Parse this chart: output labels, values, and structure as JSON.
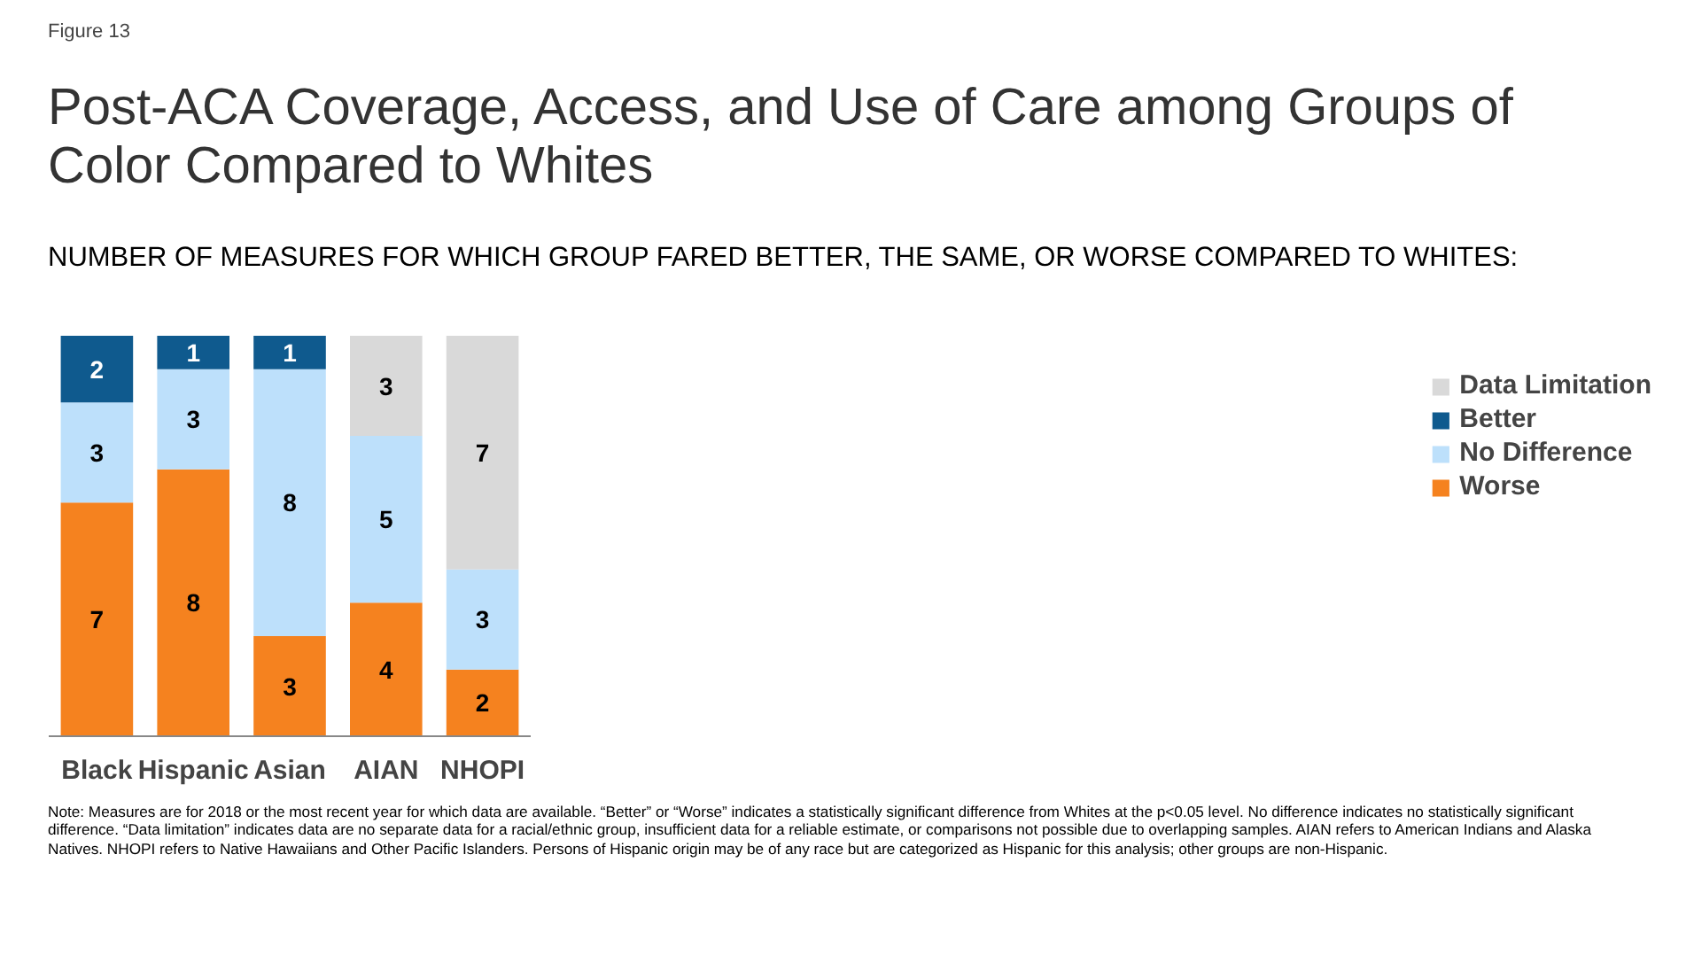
{
  "chart_data": {
    "type": "bar",
    "stacked": true,
    "data_labels": true,
    "legend": "right",
    "grid": false,
    "title": "Post-ACA Coverage, Access, and Use of Care among Groups of Color Compared to Whites",
    "subtitle": "NUMBER OF MEASURES FOR WHICH GROUP FARED BETTER, THE SAME, OR WORSE COMPARED TO WHITES:",
    "categories": [
      "Black",
      "Hispanic",
      "Asian",
      "AIAN",
      "NHOPI"
    ],
    "series": [
      {
        "name": "Worse",
        "color": "#f5821f",
        "values": [
          7,
          8,
          3,
          4,
          2
        ]
      },
      {
        "name": "No Difference",
        "color": "#bde0fb",
        "values": [
          3,
          3,
          8,
          5,
          3
        ]
      },
      {
        "name": "Better",
        "color": "#0f5a8e",
        "values": [
          2,
          1,
          1,
          null,
          null
        ]
      },
      {
        "name": "Data Limitation",
        "color": "#d9d9d9",
        "values": [
          null,
          null,
          null,
          3,
          7
        ]
      }
    ],
    "annotations": [
      "Figure 13",
      "Note: Measures are for 2018 or the most recent year for which data are available. “Better” or “Worse” indicates a statistically significant difference from Whites at the p<0.05 level. No difference indicates no statistically significant difference. “Data limitation” indicates data are no separate data for a racial/ethnic group, insufficient data for a reliable estimate, or comparisons not possible due to overlapping samples. AIAN refers to American Indians and Alaska Natives. NHOPI refers to Native Hawaiians and Other Pacific Islanders. Persons of Hispanic origin may be of any race but are categorized as Hispanic for this analysis; other groups are non-Hispanic."
    ]
  }
}
